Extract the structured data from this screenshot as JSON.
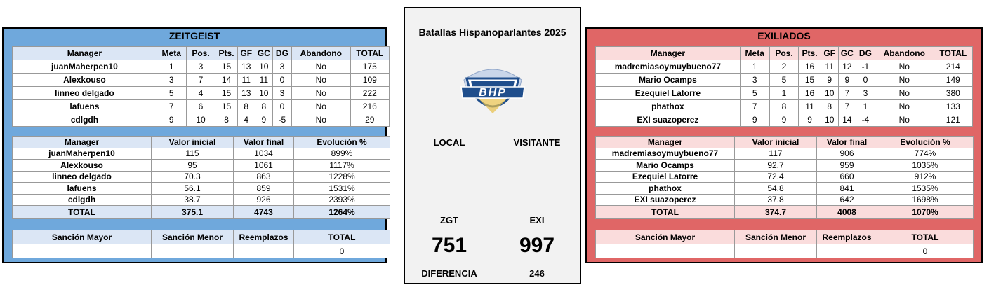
{
  "teams": {
    "left": {
      "name": "ZEITGEIST",
      "stats_headers": [
        "Manager",
        "Meta",
        "Pos.",
        "Pts.",
        "GF",
        "GC",
        "DG",
        "Abandono",
        "TOTAL"
      ],
      "stats_rows": [
        [
          "juanMaherpen10",
          "1",
          "3",
          "15",
          "13",
          "10",
          "3",
          "No",
          "175"
        ],
        [
          "Alexkouso",
          "3",
          "7",
          "14",
          "11",
          "11",
          "0",
          "No",
          "109"
        ],
        [
          "linneo delgado",
          "5",
          "4",
          "15",
          "13",
          "10",
          "3",
          "No",
          "222"
        ],
        [
          "lafuens",
          "7",
          "6",
          "15",
          "8",
          "8",
          "0",
          "No",
          "216"
        ],
        [
          "cdlgdh",
          "9",
          "10",
          "8",
          "4",
          "9",
          "-5",
          "No",
          "29"
        ]
      ],
      "evo_headers": [
        "Manager",
        "Valor inicial",
        "Valor final",
        "Evolución %"
      ],
      "evo_rows": [
        [
          "juanMaherpen10",
          "115",
          "1034",
          "899%"
        ],
        [
          "Alexkouso",
          "95",
          "1061",
          "1117%"
        ],
        [
          "linneo delgado",
          "70.3",
          "863",
          "1228%"
        ],
        [
          "lafuens",
          "56.1",
          "859",
          "1531%"
        ],
        [
          "cdlgdh",
          "38.7",
          "926",
          "2393%"
        ]
      ],
      "evo_total": [
        "TOTAL",
        "375.1",
        "4743",
        "1264%"
      ],
      "sanc_headers": [
        "Sanción Mayor",
        "Sanción Menor",
        "Reemplazos",
        "TOTAL"
      ],
      "sanc_values": [
        "",
        "",
        "",
        "0"
      ]
    },
    "right": {
      "name": "EXILIADOS",
      "stats_headers": [
        "Manager",
        "Meta",
        "Pos.",
        "Pts.",
        "GF",
        "GC",
        "DG",
        "Abandono",
        "TOTAL"
      ],
      "stats_rows": [
        [
          "madremiasoymuybueno77",
          "1",
          "2",
          "16",
          "11",
          "12",
          "-1",
          "No",
          "214"
        ],
        [
          "Mario Ocamps",
          "3",
          "5",
          "15",
          "9",
          "9",
          "0",
          "No",
          "149"
        ],
        [
          "Ezequiel Latorre",
          "5",
          "1",
          "16",
          "10",
          "7",
          "3",
          "No",
          "380"
        ],
        [
          "phathox",
          "7",
          "8",
          "11",
          "8",
          "7",
          "1",
          "No",
          "133"
        ],
        [
          "EXI suazoperez",
          "9",
          "9",
          "9",
          "10",
          "14",
          "-4",
          "No",
          "121"
        ]
      ],
      "evo_headers": [
        "Manager",
        "Valor inicial",
        "Valor final",
        "Evolución %"
      ],
      "evo_rows": [
        [
          "madremiasoymuybueno77",
          "117",
          "906",
          "774%"
        ],
        [
          "Mario Ocamps",
          "92.7",
          "959",
          "1035%"
        ],
        [
          "Ezequiel Latorre",
          "72.4",
          "660",
          "912%"
        ],
        [
          "phathox",
          "54.8",
          "841",
          "1535%"
        ],
        [
          "EXI suazoperez",
          "37.8",
          "642",
          "1698%"
        ]
      ],
      "evo_total": [
        "TOTAL",
        "374.7",
        "4008",
        "1070%"
      ],
      "sanc_headers": [
        "Sanción Mayor",
        "Sanción Menor",
        "Reemplazos",
        "TOTAL"
      ],
      "sanc_values": [
        "",
        "",
        "",
        "0"
      ]
    }
  },
  "center": {
    "title": "Batallas Hispanoparlantes 2025",
    "logo_text": "BHP",
    "local_label": "LOCAL",
    "visitante_label": "VISITANTE",
    "local_abbr": "ZGT",
    "visitante_abbr": "EXI",
    "local_score": "751",
    "visitante_score": "997",
    "diff_label": "DIFERENCIA",
    "diff_value": "246"
  },
  "colors": {
    "zeitgeist": "#6fa8dc",
    "exiliados": "#e06666",
    "logo_blue": "#1f4e8c"
  }
}
